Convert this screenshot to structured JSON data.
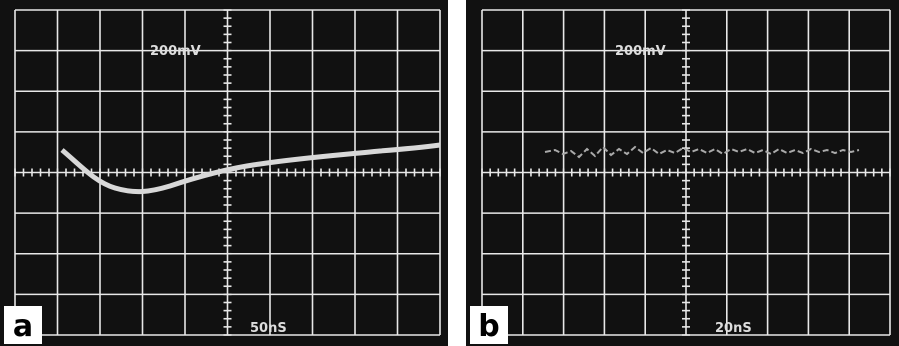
{
  "panels": [
    {
      "label": "a",
      "volts": "200mV",
      "time": "50nS"
    },
    {
      "label": "b",
      "volts": "200mV",
      "time": "20nS"
    }
  ]
}
